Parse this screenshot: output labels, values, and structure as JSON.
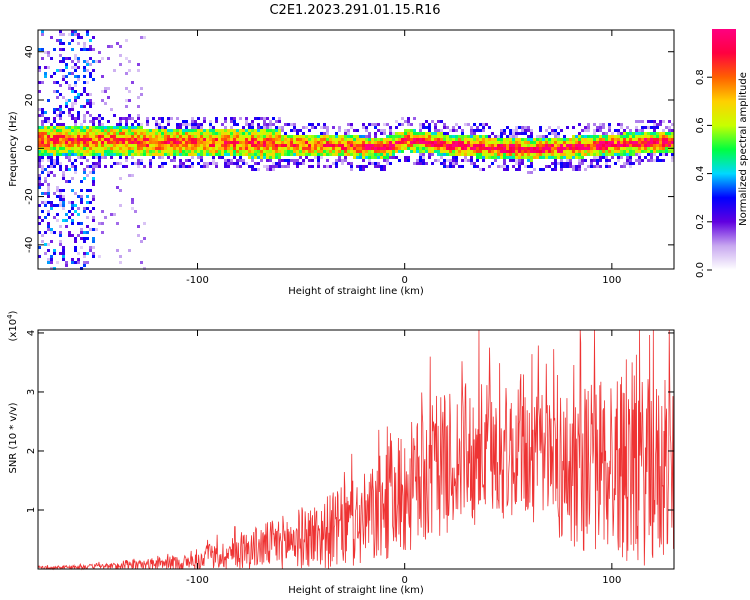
{
  "title": "C2E1.2023.291.01.15.R16",
  "chart_data": [
    {
      "type": "heatmap",
      "xlabel": "Height of straight line (km)",
      "ylabel": "Frequency (Hz)",
      "xlim": [
        -177,
        130
      ],
      "ylim": [
        -50,
        49
      ],
      "x_ticks": [
        -100,
        0,
        100
      ],
      "x_tick_labels": [
        "-100",
        "0",
        "100"
      ],
      "y_ticks": [
        -40,
        -20,
        0,
        20,
        40
      ],
      "y_tick_labels": [
        "-40",
        "-20",
        "0",
        "20",
        "40"
      ],
      "ridge": {
        "x": [
          -177,
          -150,
          -120,
          -100,
          -80,
          -60,
          -40,
          -20,
          -10,
          0,
          20,
          40,
          60,
          80,
          100,
          120,
          130
        ],
        "center_freq": [
          4,
          4,
          3,
          3,
          3,
          2,
          2,
          1,
          1,
          4,
          2,
          1,
          0,
          1,
          2,
          3,
          3
        ]
      },
      "colorbar": {
        "label": "Normalized spectral amplitude",
        "range": [
          0,
          1
        ],
        "ticks": [
          0.0,
          0.2,
          0.4,
          0.6,
          0.8
        ],
        "tick_labels": [
          "0.0",
          "0.2",
          "0.4",
          "0.6",
          "0.8"
        ],
        "colors": [
          "#ffffff",
          "#c8a8f0",
          "#6000e0",
          "#0000ff",
          "#00d8ff",
          "#00ff40",
          "#c8ff00",
          "#ffd000",
          "#ff6000",
          "#ff0040",
          "#ff0080"
        ]
      }
    },
    {
      "type": "line",
      "xlabel": "Height of straight line (km)",
      "ylabel": "SNR (10 * v/v)",
      "y_multiplier": "(x10",
      "y_multiplier_exp": "4",
      "y_multiplier_close": ")",
      "xlim": [
        -177,
        130
      ],
      "ylim": [
        0,
        4.05
      ],
      "x_ticks": [
        -100,
        0,
        100
      ],
      "x_tick_labels": [
        "-100",
        "0",
        "100"
      ],
      "y_ticks": [
        1,
        2,
        3,
        4
      ],
      "y_tick_labels": [
        "1",
        "2",
        "3",
        "4"
      ],
      "color": "#ee3333",
      "envelope": {
        "x": [
          -177,
          -140,
          -100,
          -80,
          -60,
          -40,
          -20,
          0,
          20,
          40,
          60,
          80,
          100,
          120,
          130
        ],
        "mean": [
          0.02,
          0.05,
          0.12,
          0.3,
          0.45,
          0.6,
          0.8,
          1.3,
          1.8,
          2.0,
          1.9,
          1.7,
          1.8,
          1.6,
          1.6
        ],
        "spread": [
          0.02,
          0.05,
          0.15,
          0.3,
          0.45,
          0.6,
          0.8,
          1.1,
          1.2,
          1.2,
          1.1,
          1.4,
          1.6,
          1.6,
          1.5
        ]
      }
    }
  ]
}
